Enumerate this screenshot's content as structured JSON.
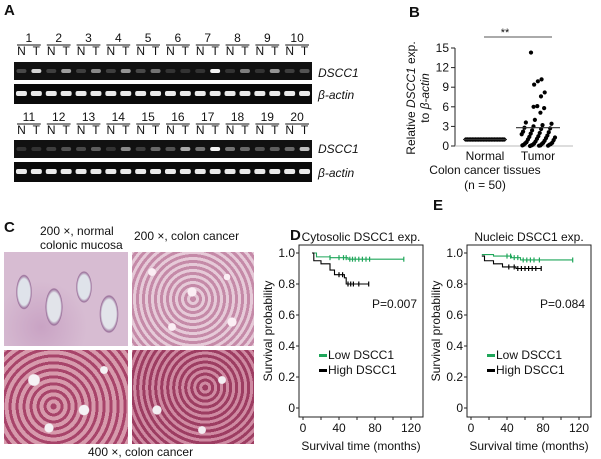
{
  "panels": {
    "A": {
      "label": "A",
      "lane_labels": [
        "N",
        "T"
      ],
      "row1_samples": [
        "1",
        "2",
        "3",
        "4",
        "5",
        "6",
        "7",
        "8",
        "9",
        "10"
      ],
      "row2_samples": [
        "11",
        "12",
        "13",
        "14",
        "15",
        "16",
        "17",
        "18",
        "19",
        "20"
      ],
      "gene_label": "DSCC1",
      "control_label": "β-actin",
      "dscc1_band_intensity_row1": [
        0.15,
        0.8,
        0.1,
        0.55,
        0.1,
        0.45,
        0.1,
        0.5,
        0.15,
        0.35,
        0.05,
        0.05,
        0.05,
        0.95,
        0.05,
        0.4,
        0.05,
        0.5,
        0.1,
        0.2
      ],
      "dscc1_band_intensity_row2": [
        0.05,
        0.05,
        0.1,
        0.2,
        0.15,
        0.25,
        0.05,
        0.45,
        0.1,
        0.3,
        0.2,
        0.6,
        0.35,
        0.95,
        0.35,
        0.3,
        0.2,
        0.25,
        0.3,
        0.7
      ],
      "actin_band_intensity": 0.9
    },
    "B": {
      "label": "B",
      "significance": "**",
      "ylabel_line1_prefix": "Relative ",
      "ylabel_line1_gene": "DSCC1",
      "ylabel_line1_suffix": " exp.",
      "ylabel_line2_prefix": "to ",
      "ylabel_line2_gene": "β-actin",
      "xlabel": "Colon cancer tissues",
      "n_label": "(n = 50)"
    },
    "C": {
      "label": "C",
      "caption_top_left_1": "200 ×, normal",
      "caption_top_left_2": "colonic mucosa",
      "caption_top_right": "200 ×, colon cancer",
      "caption_bottom": "400 ×, colon cancer"
    },
    "D": {
      "label": "D"
    },
    "E": {
      "label": "E"
    }
  },
  "chart_data": [
    {
      "type": "scatter",
      "panel": "B",
      "categories": [
        "Normal",
        "Tumor"
      ],
      "ylabel": "Relative DSCC1 exp. to β-actin",
      "xlabel": "Colon cancer tissues (n = 50)",
      "ylim": [
        0,
        15
      ],
      "yticks": [
        "0",
        "3",
        "6",
        "9",
        "12",
        "15"
      ],
      "series": [
        {
          "category": "Normal",
          "values": [
            1,
            1,
            1,
            1,
            1,
            1,
            1,
            1,
            1,
            1,
            1,
            1,
            1,
            1,
            1,
            1,
            1,
            1,
            1,
            1,
            1,
            1,
            1,
            1,
            1,
            1,
            1,
            1,
            1,
            1,
            1,
            1,
            1,
            1,
            1,
            1,
            1,
            1,
            1,
            1,
            1,
            1,
            1,
            1,
            1,
            1,
            1,
            1,
            1,
            1
          ],
          "mean": 1.0
        },
        {
          "category": "Tumor",
          "values": [
            14.3,
            10.2,
            9.9,
            9.4,
            8.2,
            7.6,
            6.1,
            6.0,
            5.8,
            5.1,
            4.0,
            3.6,
            3.4,
            3.2,
            3.0,
            2.8,
            2.7,
            2.6,
            2.4,
            2.2,
            2.1,
            2.0,
            1.9,
            1.8,
            1.6,
            1.5,
            1.4,
            1.3,
            1.2,
            1.1,
            1.0,
            0.9,
            0.8,
            0.7,
            0.6,
            0.5,
            0.5,
            0.4,
            0.4,
            0.3,
            0.3,
            0.2,
            0.2,
            0.2,
            0.1,
            0.1,
            0.1,
            0.05,
            0.05,
            0.0
          ],
          "mean": 2.8
        }
      ]
    },
    {
      "type": "line",
      "panel": "D",
      "title": "Cytosolic DSCC1 exp.",
      "xlabel": "Survival time (months)",
      "ylabel": "Survival probability",
      "xlim": [
        0,
        120
      ],
      "ylim": [
        0,
        1
      ],
      "xticks": [
        "0",
        "40",
        "80",
        "120"
      ],
      "yticks": [
        "0",
        "0.2",
        "0.4",
        "0.6",
        "0.8",
        "1.0"
      ],
      "annotation": "P=0.007",
      "series": [
        {
          "name": "Low DSCC1",
          "color": "#1fa65a",
          "steps": [
            [
              10,
              1.0
            ],
            [
              15,
              0.975
            ],
            [
              30,
              0.97
            ],
            [
              50,
              0.96
            ],
            [
              112,
              0.96
            ]
          ],
          "censored": [
            30,
            40,
            45,
            48,
            52,
            55,
            58,
            62,
            66,
            70,
            74,
            112
          ]
        },
        {
          "name": "High DSCC1",
          "color": "#000000",
          "steps": [
            [
              10,
              1.0
            ],
            [
              12,
              0.95
            ],
            [
              20,
              0.93
            ],
            [
              30,
              0.89
            ],
            [
              35,
              0.86
            ],
            [
              46,
              0.84
            ],
            [
              48,
              0.8
            ],
            [
              73,
              0.8
            ]
          ],
          "censored": [
            40,
            44,
            50,
            53,
            56,
            62,
            73
          ]
        }
      ]
    },
    {
      "type": "line",
      "panel": "E",
      "title": "Nucleic DSCC1 exp.",
      "xlabel": "Survival time (months)",
      "ylabel": "Survival probability",
      "xlim": [
        0,
        120
      ],
      "ylim": [
        0,
        1
      ],
      "xticks": [
        "0",
        "40",
        "80",
        "120"
      ],
      "yticks": [
        "0",
        "0.2",
        "0.4",
        "0.6",
        "0.8",
        "1.0"
      ],
      "annotation": "P=0.084",
      "series": [
        {
          "name": "Low DSCC1",
          "color": "#1fa65a",
          "steps": [
            [
              12,
              0.99
            ],
            [
              25,
              0.98
            ],
            [
              45,
              0.97
            ],
            [
              55,
              0.955
            ],
            [
              113,
              0.955
            ]
          ],
          "censored": [
            40,
            44,
            48,
            52,
            58,
            62,
            66,
            70,
            76,
            113
          ]
        },
        {
          "name": "High DSCC1",
          "color": "#000000",
          "steps": [
            [
              12,
              0.98
            ],
            [
              15,
              0.95
            ],
            [
              25,
              0.93
            ],
            [
              35,
              0.91
            ],
            [
              50,
              0.9
            ],
            [
              78,
              0.9
            ]
          ],
          "censored": [
            42,
            48,
            52,
            56,
            60,
            64,
            68,
            72,
            78
          ]
        }
      ]
    }
  ]
}
